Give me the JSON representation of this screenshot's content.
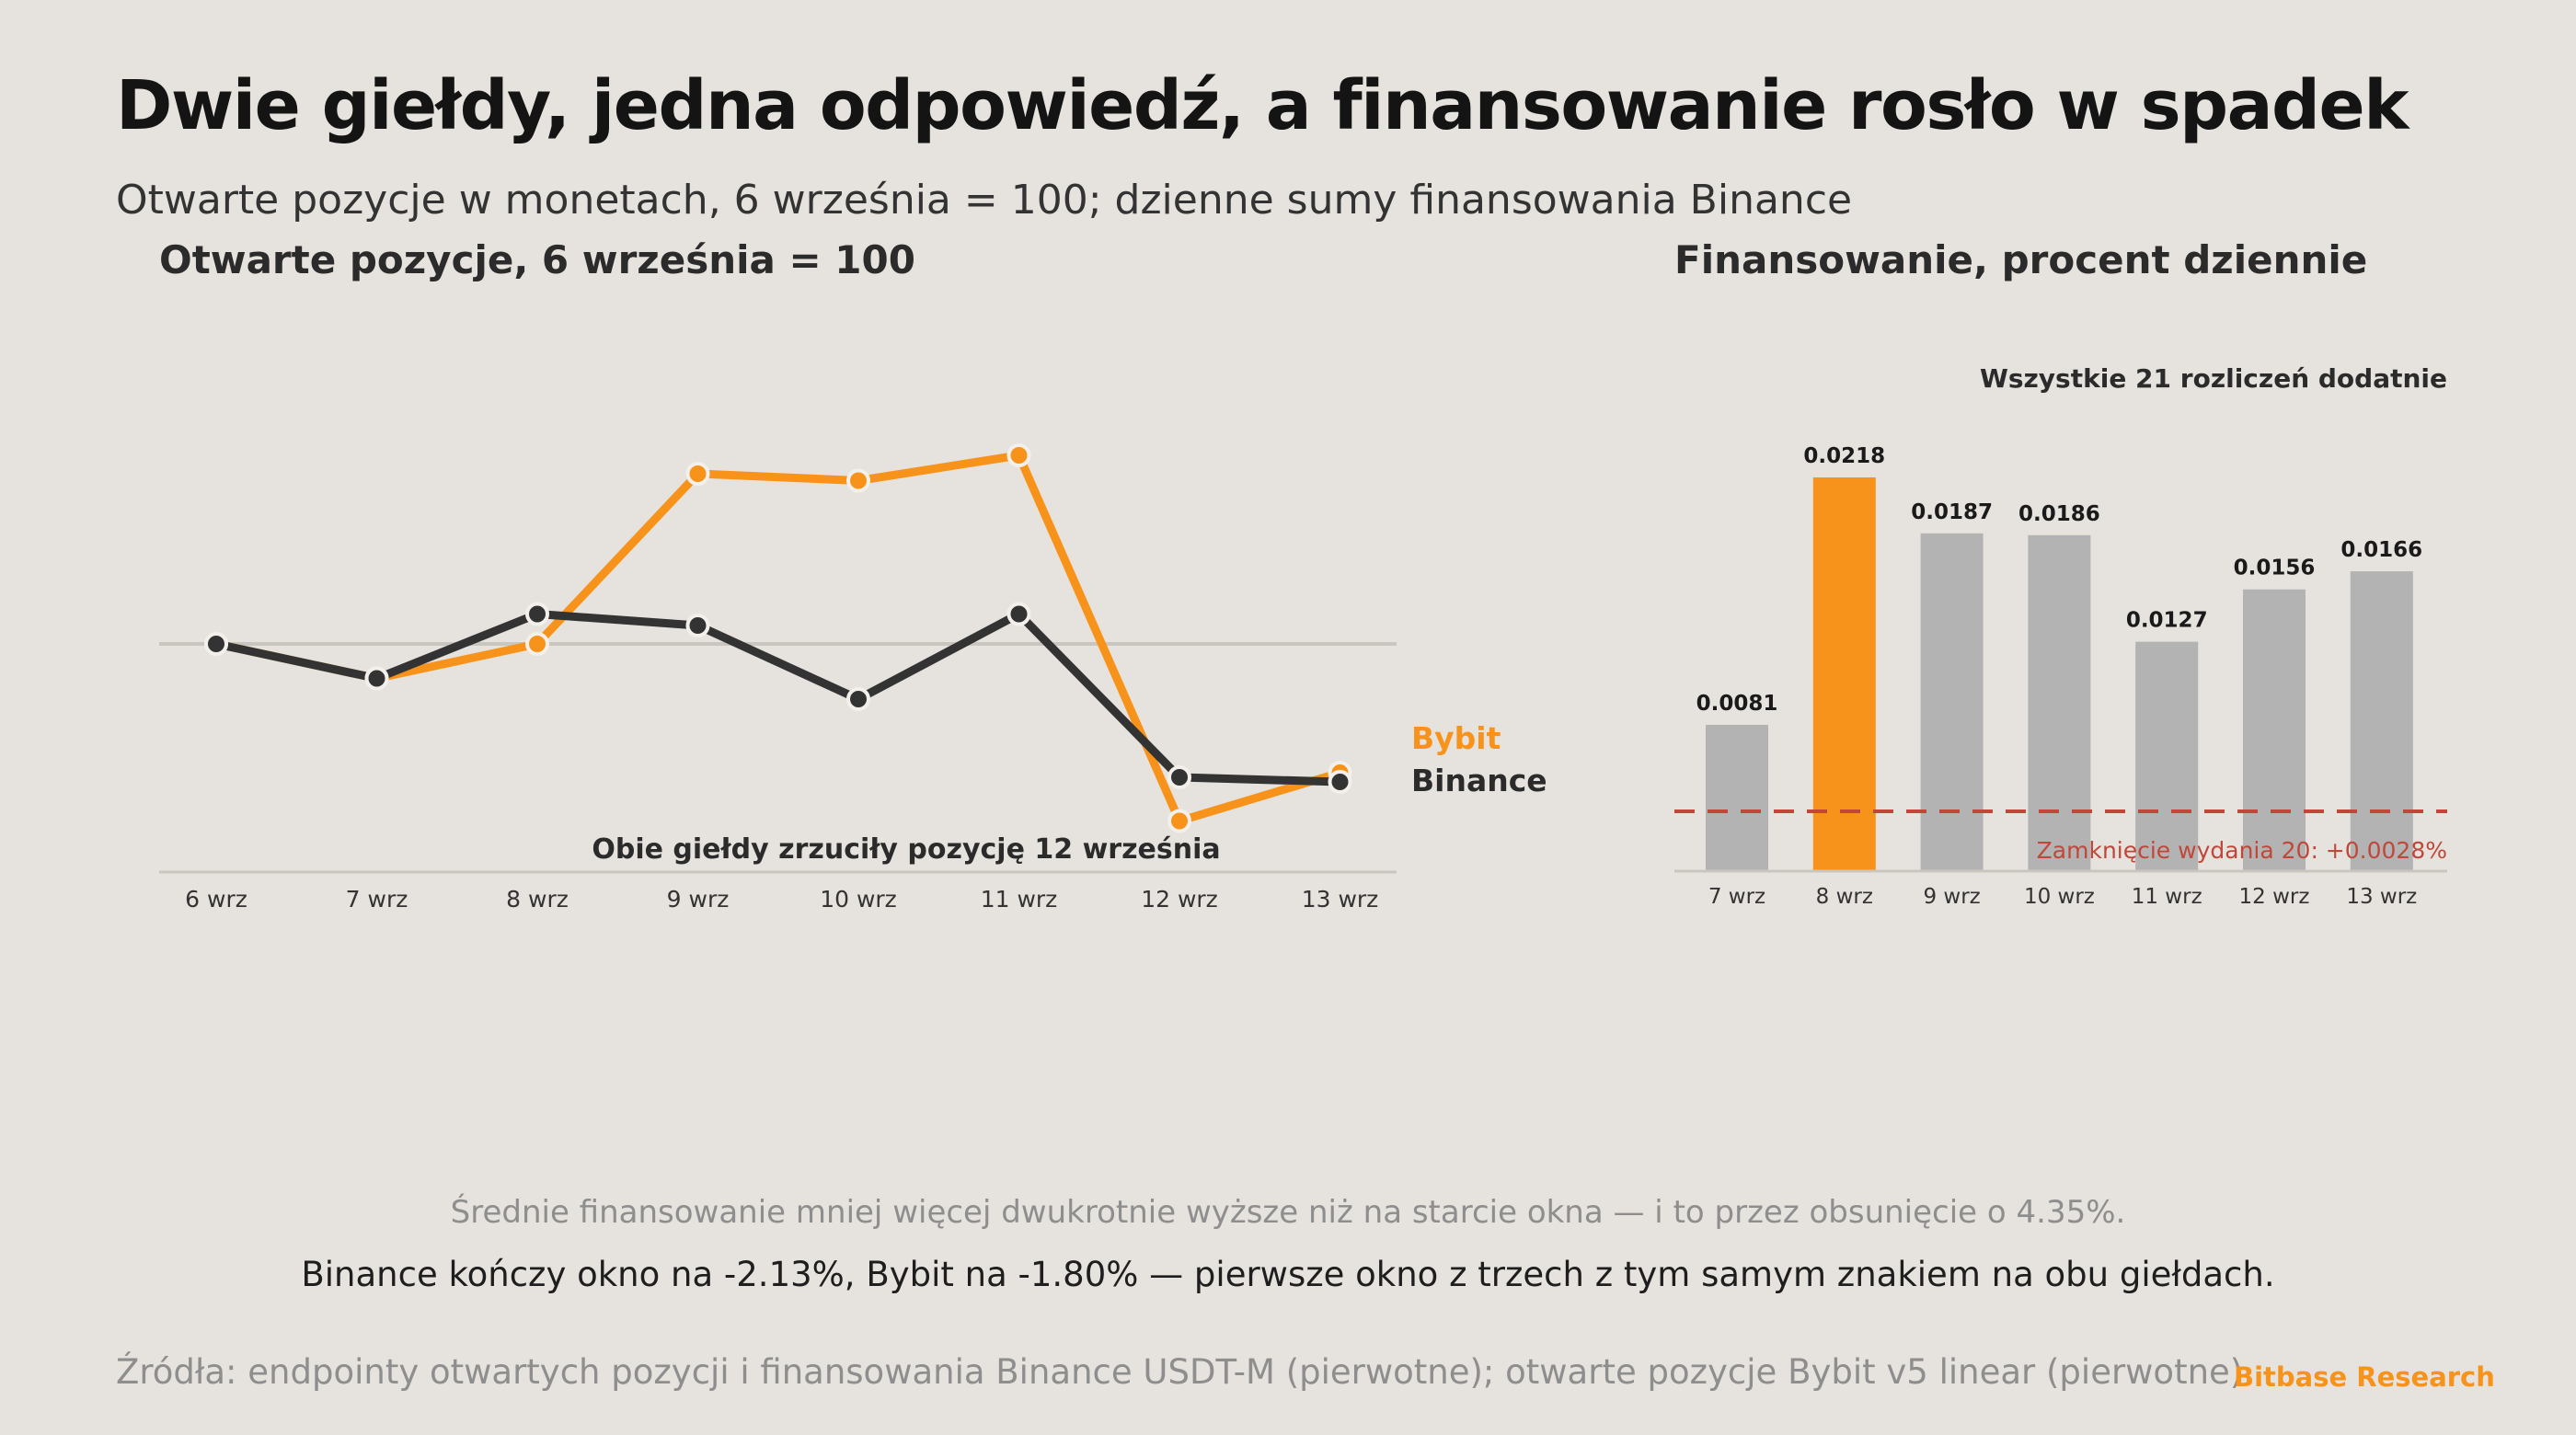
{
  "title": "Dwie giełdy, jedna odpowiedź, a finansowanie rosło w spadek",
  "subtitle": "Otwarte pozycje w monetach, 6 września = 100; dzienne sumy finansowania Binance",
  "colors": {
    "bybit": "#f7931a",
    "binance": "#333333",
    "bar": "#b3b3b3",
    "bar_highlight": "#f7931a",
    "reference": "#c0473a",
    "background": "#e6e2dd"
  },
  "footer": {
    "note1": "Średnie finansowanie mniej więcej dwukrotnie wyższe niż na starcie okna — i to przez obsunięcie o 4.35%.",
    "note2": "Binance kończy okno na -2.13%, Bybit na -1.80% — pierwsze okno z trzech z tym samym znakiem na obu giełdach.",
    "sources": "Źródła: endpointy otwartych pozycji i finansowania Binance USDT-M (pierwotne); otwarte pozycje Bybit v5 linear (pierwotne).",
    "brand": "Bitbase Research"
  },
  "chart_data": [
    {
      "type": "line",
      "title": "Otwarte pozycje, 6 września = 100",
      "categories": [
        "6 wrz",
        "7 wrz",
        "8 wrz",
        "9 wrz",
        "10 wrz",
        "11 wrz",
        "12 wrz",
        "13 wrz"
      ],
      "series": [
        {
          "name": "Bybit",
          "values": [
            100,
            98.5,
            100,
            107.4,
            107.1,
            108.2,
            92.3,
            94.4
          ]
        },
        {
          "name": "Binance",
          "values": [
            100,
            98.5,
            101.3,
            100.8,
            97.6,
            101.3,
            94.2,
            94.0
          ]
        }
      ],
      "reference_line": 100,
      "ylim": [
        88,
        116
      ],
      "annotation": "Obie giełdy zrzuciły pozycję 12 września",
      "legend": "right"
    },
    {
      "type": "bar",
      "title": "Finansowanie, procent dziennie",
      "categories": [
        "7 wrz",
        "8 wrz",
        "9 wrz",
        "10 wrz",
        "11 wrz",
        "12 wrz",
        "13 wrz"
      ],
      "values": [
        0.0081,
        0.0218,
        0.0187,
        0.0186,
        0.0127,
        0.0156,
        0.0166
      ],
      "value_labels": [
        "0.0081",
        "0.0218",
        "0.0187",
        "0.0186",
        "0.0127",
        "0.0156",
        "0.0166"
      ],
      "highlight_index": 1,
      "reference_line": {
        "value": 0.0028,
        "label": "Zamknięcie wydania 20: +0.0028%"
      },
      "annotation": "Wszystkie 21 rozliczeń dodatnie",
      "ylim": [
        0,
        0.0218
      ]
    }
  ]
}
